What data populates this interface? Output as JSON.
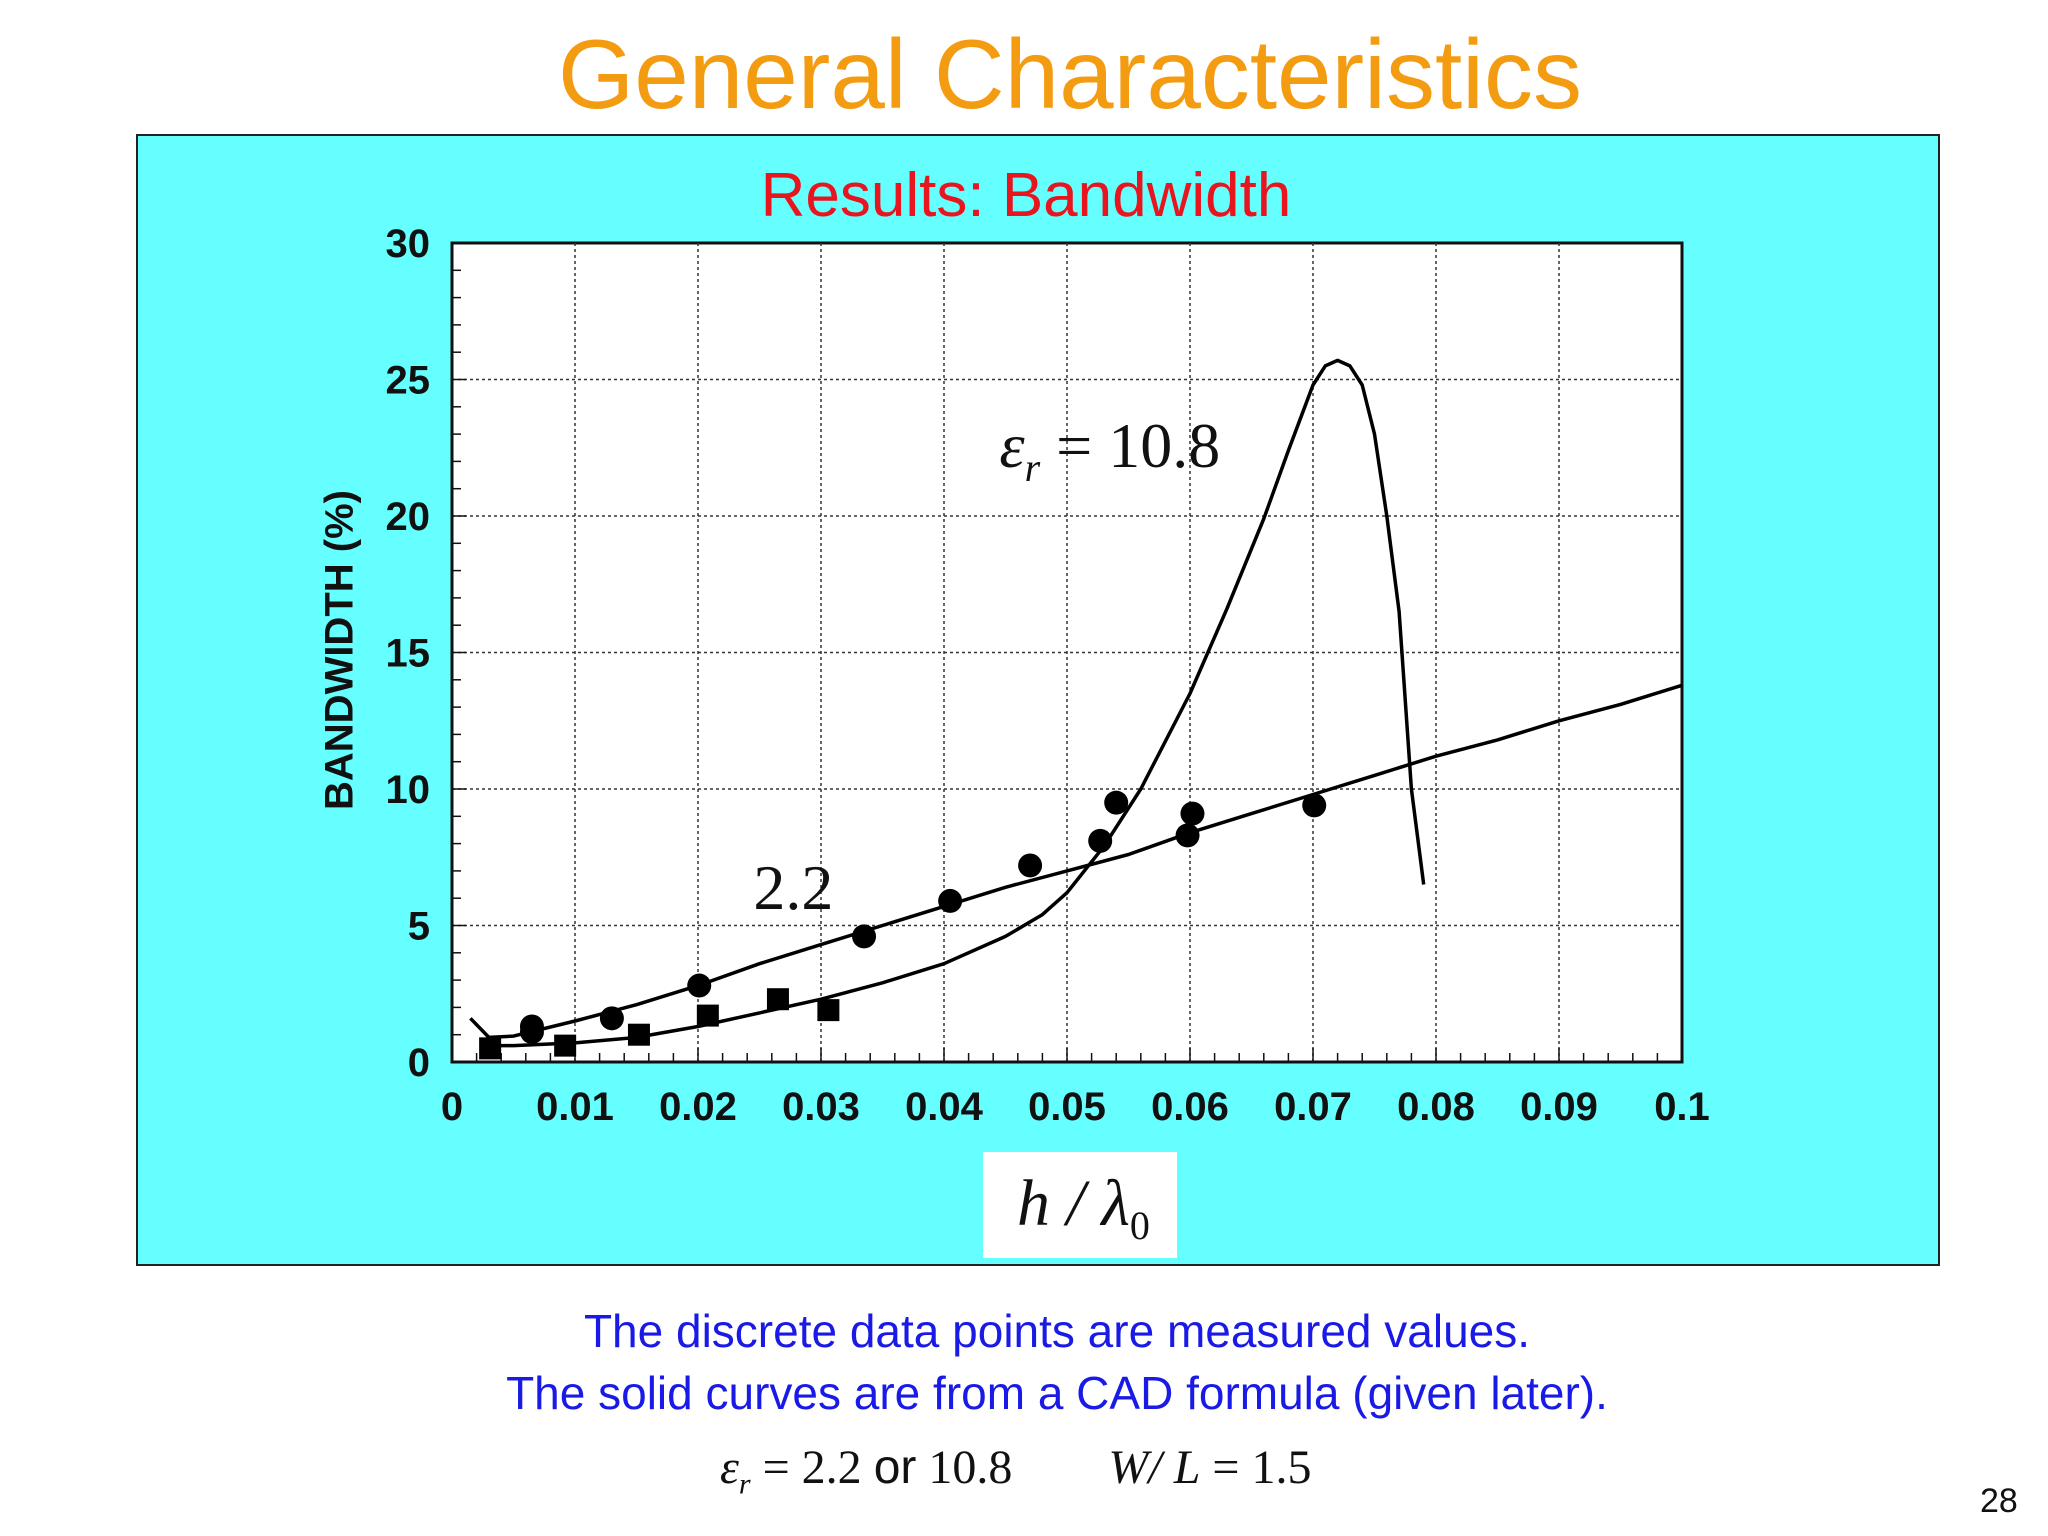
{
  "slide": {
    "title": "General Characteristics",
    "page_number": "28",
    "note_line1": "The discrete data points are measured values.",
    "note_line2": "The solid curves are from a CAD formula (given later).",
    "params": {
      "eps_symbol": "ε",
      "eps_sub": "r",
      "eps_eq": " = 2.2 ",
      "or_word": "or",
      "eps_value2": " 10.8",
      "wl_label": "W/ L",
      "wl_value": " = 1.5"
    }
  },
  "chart_data": {
    "type": "scatter",
    "title": "Results: Bandwidth",
    "xlabel": "h / λ0",
    "xlabel_main": "h / λ",
    "xlabel_sub": "0",
    "ylabel": "BANDWIDTH (%)",
    "xlim": [
      0,
      0.1
    ],
    "ylim": [
      0,
      30
    ],
    "grid": true,
    "x_ticks": [
      "0",
      "0.01",
      "0.02",
      "0.03",
      "0.04",
      "0.05",
      "0.06",
      "0.07",
      "0.08",
      "0.09",
      "0.1"
    ],
    "y_ticks": [
      "0",
      "5",
      "10",
      "15",
      "20",
      "25",
      "30"
    ],
    "annotations": [
      {
        "text": "2.2",
        "x": 0.0245,
        "y": 5.6
      },
      {
        "symbol": "ε",
        "sub": "r",
        "text": " = 10.8",
        "x": 0.0445,
        "y": 21.8
      }
    ],
    "series": [
      {
        "name": "εr = 2.2 measured",
        "kind": "points",
        "marker": "circle",
        "x": [
          0.0065,
          0.0065,
          0.013,
          0.0201,
          0.0335,
          0.0405,
          0.047,
          0.0527,
          0.054,
          0.0598,
          0.0602,
          0.0701
        ],
        "y": [
          1.3,
          1.1,
          1.6,
          2.8,
          4.6,
          5.9,
          7.2,
          8.1,
          9.5,
          8.3,
          9.1,
          9.4
        ]
      },
      {
        "name": "εr = 10.8 measured",
        "kind": "points",
        "marker": "square",
        "x": [
          0.0031,
          0.0092,
          0.0152,
          0.0208,
          0.0265,
          0.0306
        ],
        "y": [
          0.5,
          0.6,
          1.0,
          1.7,
          2.3,
          1.9
        ]
      },
      {
        "name": "εr = 2.2 CAD formula",
        "kind": "curve",
        "x": [
          0.0015,
          0.003,
          0.005,
          0.01,
          0.015,
          0.02,
          0.025,
          0.03,
          0.035,
          0.04,
          0.045,
          0.05,
          0.055,
          0.06,
          0.065,
          0.07,
          0.075,
          0.08,
          0.085,
          0.09,
          0.095,
          0.1
        ],
        "y": [
          1.6,
          0.9,
          0.95,
          1.5,
          2.1,
          2.8,
          3.6,
          4.3,
          5.0,
          5.7,
          6.4,
          7.0,
          7.6,
          8.4,
          9.1,
          9.8,
          10.5,
          11.2,
          11.8,
          12.5,
          13.1,
          13.8
        ]
      },
      {
        "name": "εr = 10.8 CAD formula",
        "kind": "curve",
        "x": [
          0.003,
          0.005,
          0.01,
          0.015,
          0.02,
          0.025,
          0.03,
          0.035,
          0.04,
          0.045,
          0.048,
          0.05,
          0.053,
          0.056,
          0.06,
          0.063,
          0.066,
          0.068,
          0.07,
          0.071,
          0.072,
          0.073,
          0.074,
          0.075,
          0.076,
          0.077,
          0.078,
          0.079
        ],
        "y": [
          0.6,
          0.6,
          0.7,
          0.9,
          1.3,
          1.8,
          2.3,
          2.9,
          3.6,
          4.6,
          5.4,
          6.2,
          7.9,
          10.0,
          13.5,
          16.6,
          19.9,
          22.4,
          24.8,
          25.5,
          25.7,
          25.5,
          24.8,
          23.0,
          20.0,
          16.5,
          10.0,
          6.5
        ]
      }
    ]
  }
}
